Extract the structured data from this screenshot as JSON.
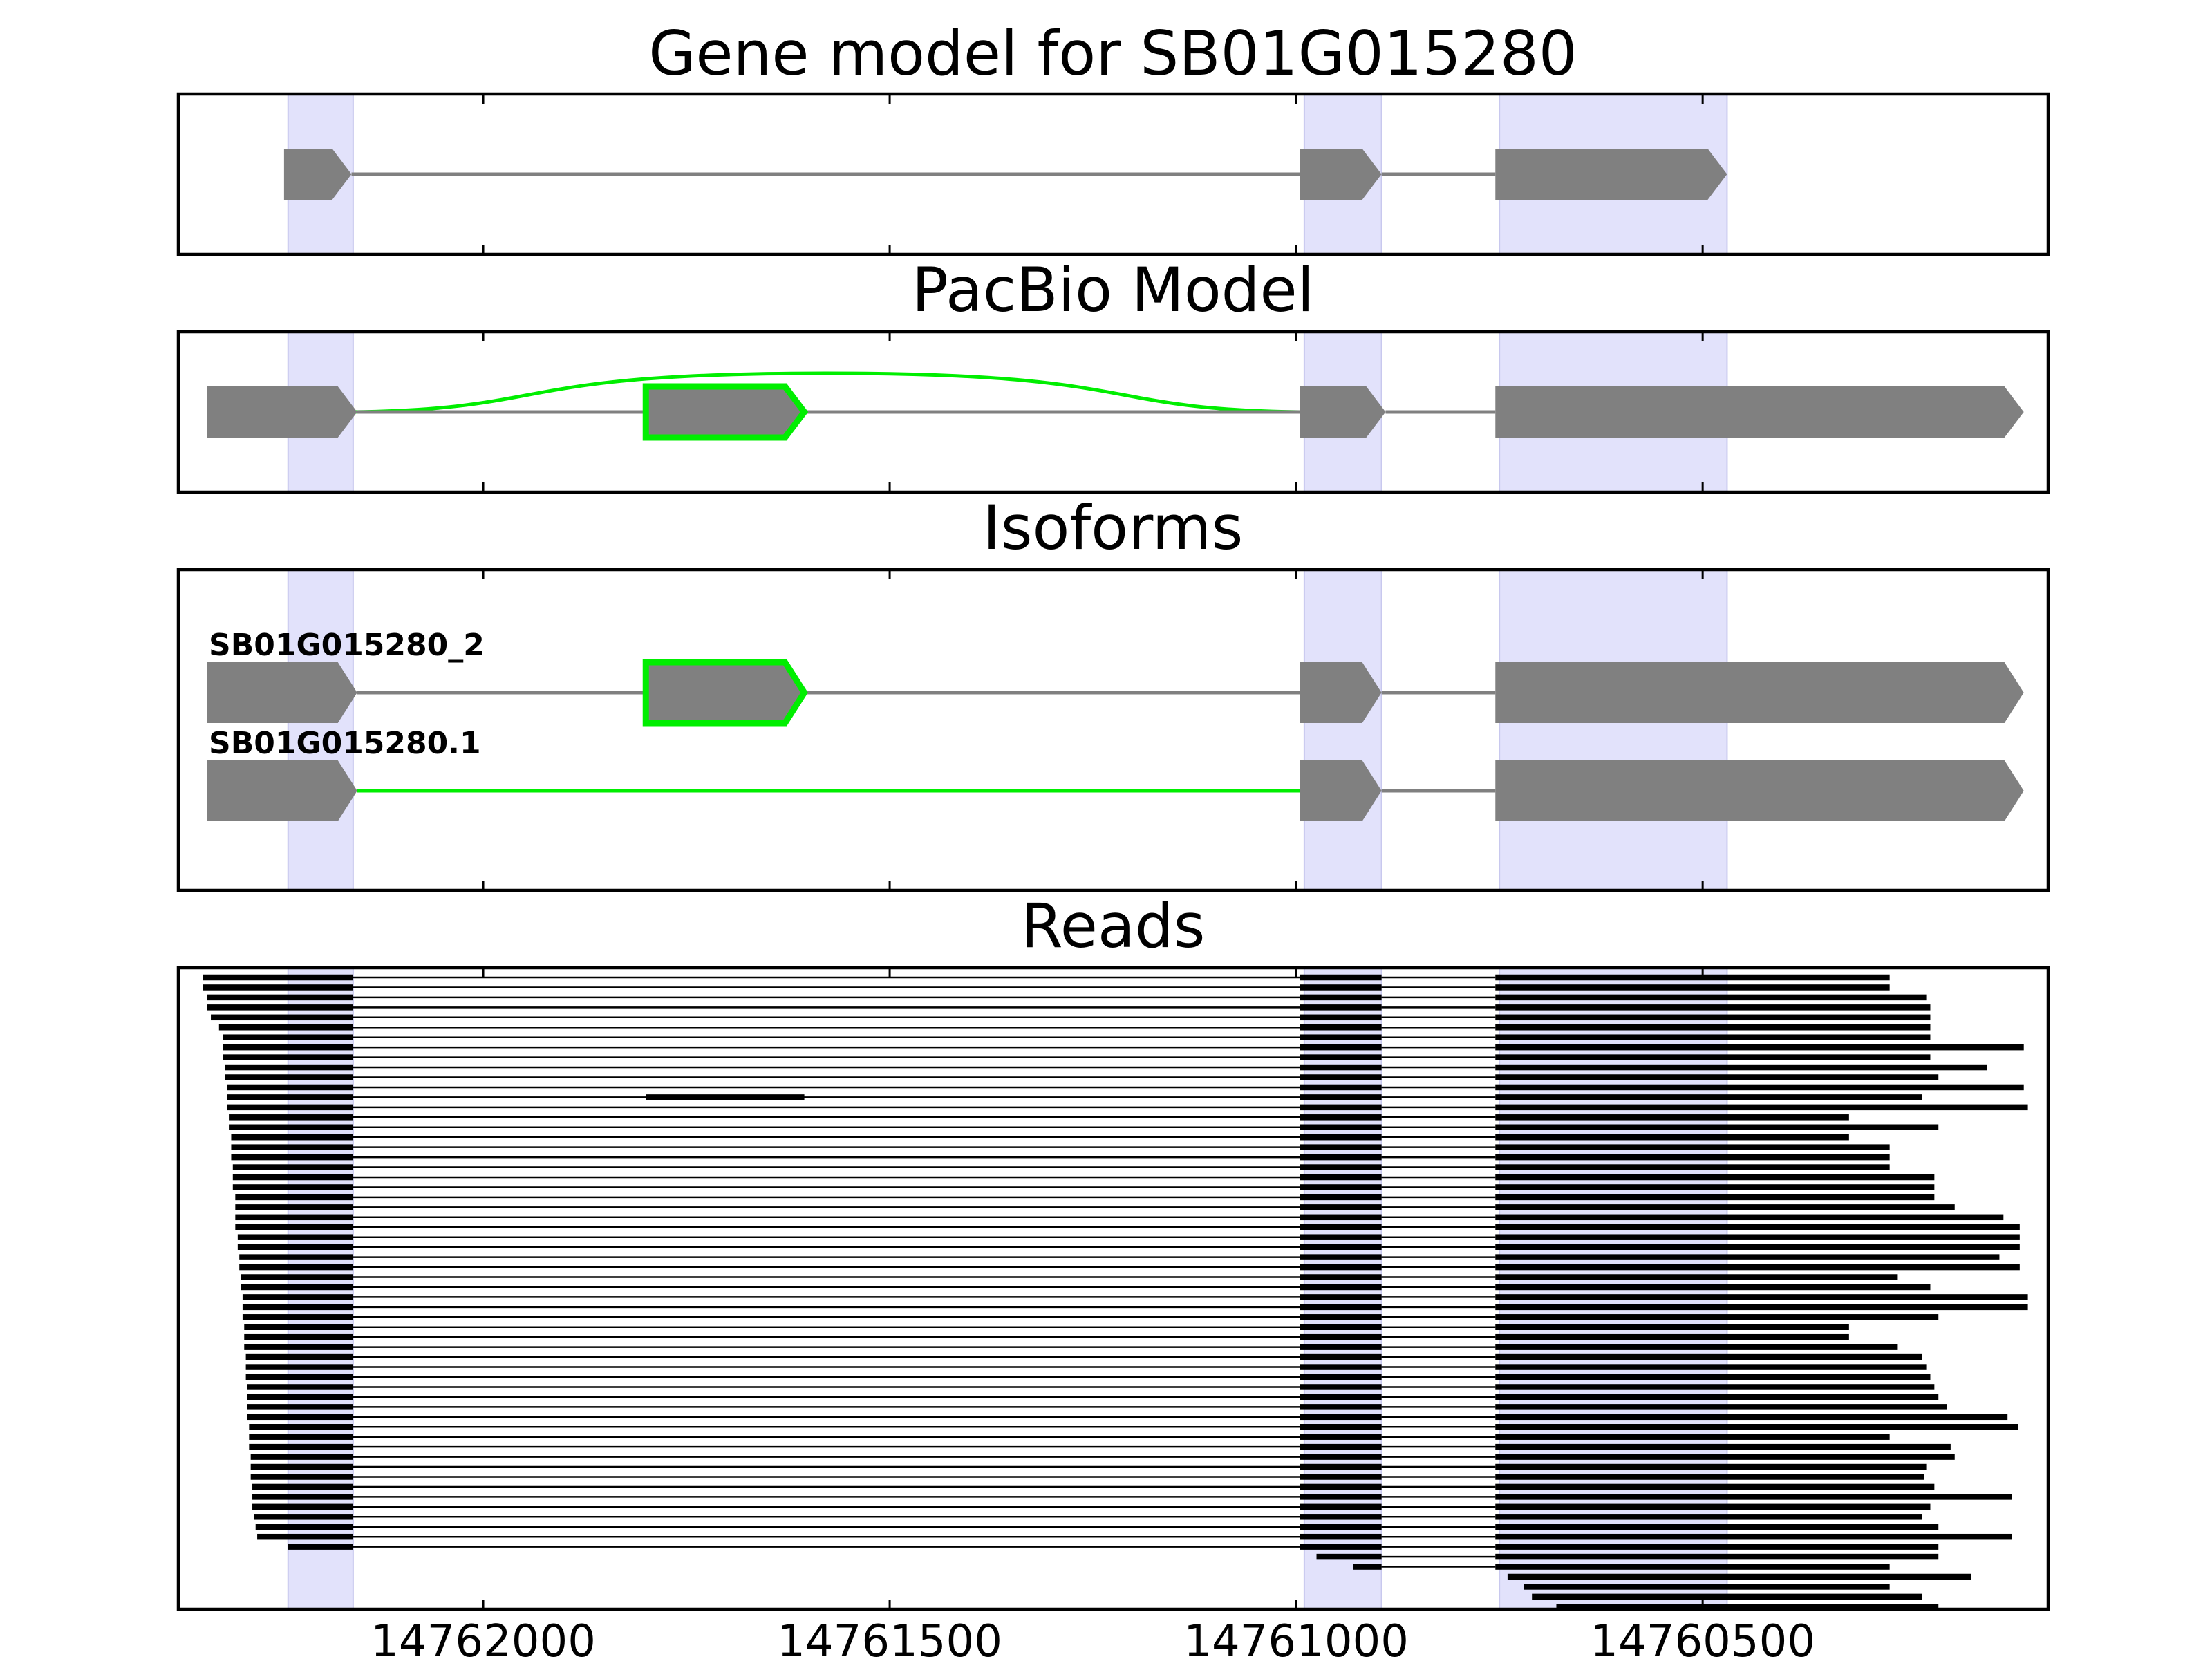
{
  "colors": {
    "exon": "#808080",
    "intron": "#808080",
    "highlight": "#00ee00",
    "region": "#e2e2fb",
    "read": "#000000",
    "frame": "#000000"
  },
  "chart_data": {
    "type": "gene-track",
    "x_axis": {
      "reversed": true,
      "xlim": [
        14762375,
        14760075
      ],
      "ticks": [
        14762000,
        14761500,
        14761000,
        14760500
      ],
      "tick_labels": [
        "14762000",
        "14761500",
        "14761000",
        "14760500"
      ]
    },
    "regions": [
      [
        14762240,
        14762160
      ],
      [
        14760990,
        14760895
      ],
      [
        14760750,
        14760470
      ]
    ],
    "panels": [
      {
        "title": "Gene model for SB01G015280",
        "isoforms": [
          {
            "label": "",
            "exons": [
              [
                14762245,
                14762162
              ],
              [
                14760995,
                14760895
              ],
              [
                14760755,
                14760470
              ]
            ],
            "highlight_exon": null,
            "highlight_introns": []
          }
        ],
        "arcs": []
      },
      {
        "title": "PacBio Model",
        "isoforms": [
          {
            "label": "",
            "exons": [
              [
                14762340,
                14762155
              ],
              [
                14761800,
                14761605
              ],
              [
                14760995,
                14760890
              ],
              [
                14760755,
                14760105
              ]
            ],
            "highlight_exon": 1,
            "highlight_introns": []
          }
        ],
        "arcs": [
          [
            14762162,
            14760995
          ]
        ]
      },
      {
        "title": "Isoforms",
        "isoforms": [
          {
            "label": "SB01G015280_2",
            "exons": [
              [
                14762340,
                14762155
              ],
              [
                14761800,
                14761605
              ],
              [
                14760995,
                14760895
              ],
              [
                14760755,
                14760105
              ]
            ],
            "highlight_exon": 1,
            "highlight_introns": []
          },
          {
            "label": "SB01G015280.1",
            "exons": [
              [
                14762340,
                14762155
              ],
              [
                14760995,
                14760895
              ],
              [
                14760755,
                14760105
              ]
            ],
            "highlight_exon": null,
            "highlight_introns": [
              0
            ]
          }
        ],
        "arcs": []
      },
      {
        "title": "Reads",
        "reads": {
          "count": 58,
          "exon2": [
            14760995,
            14760895
          ],
          "exon3_start": 14760755,
          "starts": [
            14762345,
            14762345,
            14762340,
            14762340,
            14762335,
            14762325,
            14762320,
            14762320,
            14762320,
            14762318,
            14762318,
            14762315,
            14762315,
            14762315,
            14762312,
            14762312,
            14762310,
            14762310,
            14762310,
            14762308,
            14762308,
            14762308,
            14762305,
            14762305,
            14762305,
            14762305,
            14762302,
            14762302,
            14762300,
            14762300,
            14762298,
            14762298,
            14762296,
            14762296,
            14762296,
            14762294,
            14762294,
            14762294,
            14762292,
            14762292,
            14762292,
            14762290,
            14762290,
            14762290,
            14762290,
            14762288,
            14762288,
            14762288,
            14762286,
            14762286,
            14762286,
            14762284,
            14762284,
            14762284,
            14762282,
            14762280,
            14762278,
            14762240
          ],
          "ends": [
            14760270,
            14760270,
            14760225,
            14760220,
            14760220,
            14760220,
            14760220,
            14760105,
            14760220,
            14760150,
            14760210,
            14760105,
            14760230,
            14760100,
            14760320,
            14760210,
            14760320,
            14760270,
            14760270,
            14760270,
            14760215,
            14760215,
            14760215,
            14760190,
            14760130,
            14760110,
            14760110,
            14760110,
            14760135,
            14760110,
            14760260,
            14760220,
            14760100,
            14760100,
            14760210,
            14760320,
            14760320,
            14760260,
            14760230,
            14760225,
            14760220,
            14760215,
            14760210,
            14760200,
            14760125,
            14760112,
            14760270,
            14760195,
            14760190,
            14760225,
            14760228,
            14760215,
            14760120,
            14760220,
            14760230,
            14760210,
            14760120,
            14760210
          ],
          "middle_exon_read": {
            "index": 12,
            "exon": [
              14761800,
              14761605
            ]
          },
          "late_reads": [
            {
              "start": 14760975,
              "end": 14760210
            },
            {
              "start": 14760930,
              "end": 14760270
            },
            {
              "start": 14760740,
              "end": 14760170
            },
            {
              "start": 14760720,
              "end": 14760270
            },
            {
              "start": 14760710,
              "end": 14760230
            },
            {
              "start": 14760680,
              "end": 14760210
            }
          ]
        }
      }
    ]
  }
}
